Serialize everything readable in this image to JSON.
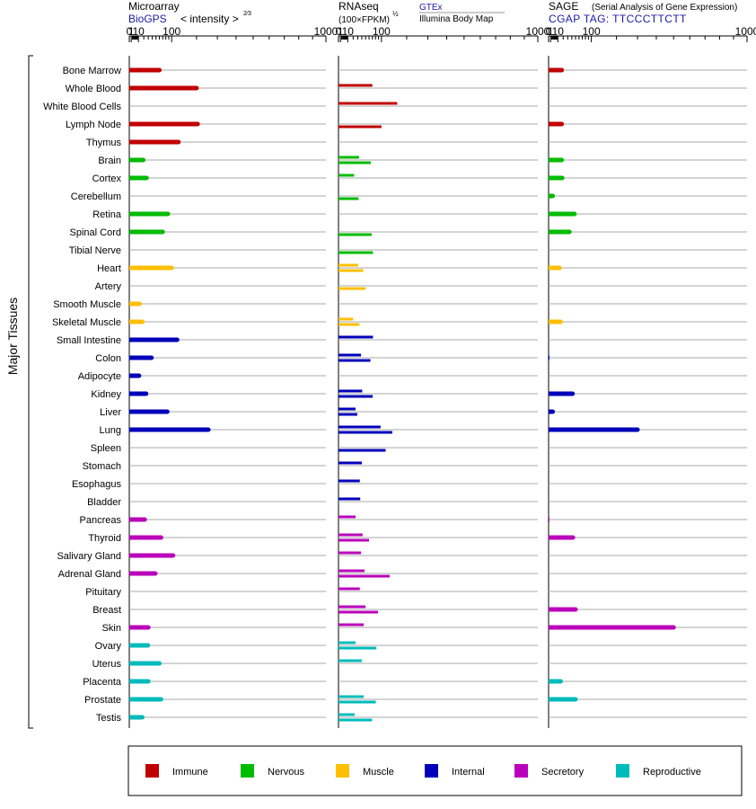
{
  "header": {
    "microarray": {
      "title": "Microarray",
      "source": "BioGPS",
      "scale": "< intensity >",
      "scale_exp": "2⁄3",
      "ticks": [
        "0",
        "1",
        "10",
        "100",
        "1000"
      ]
    },
    "rnaseq": {
      "title": "RNAseq",
      "unit": "(100×FPKM)",
      "unit_exp": "½",
      "source_gtex": "GTEx",
      "source_ibm": "Illumina Body Map",
      "ticks": [
        "0",
        "1",
        "10",
        "100",
        "1000"
      ]
    },
    "sage": {
      "title": "SAGE",
      "subtitle": "(Serial Analysis of Gene Expression)",
      "tag": "CGAP TAG: TTCCCTTCTT",
      "ticks": [
        "0",
        "1",
        "10",
        "100",
        "1000"
      ]
    }
  },
  "axis": {
    "ylabel": "Major Tissues"
  },
  "colors": {
    "Immune": "#c00000",
    "Nervous": "#00bb00",
    "Muscle": "#ffbf00",
    "Internal": "#0000bb",
    "Secretory": "#bb00bb",
    "Reproductive": "#00bbbb"
  },
  "legend": [
    {
      "name": "Immune",
      "color": "#c00000"
    },
    {
      "name": "Nervous",
      "color": "#00bb00"
    },
    {
      "name": "Muscle",
      "color": "#ffbf00"
    },
    {
      "name": "Internal",
      "color": "#0000bb"
    },
    {
      "name": "Secretory",
      "color": "#bb00bb"
    },
    {
      "name": "Reproductive",
      "color": "#00bbbb"
    }
  ],
  "chart_data": {
    "type": "bar",
    "orientation": "horizontal",
    "x_scale": "intensity^(2/3)",
    "xlim": [
      0,
      1000
    ],
    "grid": true,
    "legend_position": "bottom",
    "categories": [
      "Bone Marrow",
      "Whole Blood",
      "White Blood Cells",
      "Lymph Node",
      "Thymus",
      "Brain",
      "Cortex",
      "Cerebellum",
      "Retina",
      "Spinal Cord",
      "Tibial Nerve",
      "Heart",
      "Artery",
      "Smooth Muscle",
      "Skeletal Muscle",
      "Small Intestine",
      "Colon",
      "Adipocyte",
      "Kidney",
      "Liver",
      "Lung",
      "Spleen",
      "Stomach",
      "Esophagus",
      "Bladder",
      "Pancreas",
      "Thyroid",
      "Salivary Gland",
      "Adrenal Gland",
      "Pituitary",
      "Breast",
      "Skin",
      "Ovary",
      "Uterus",
      "Placenta",
      "Prostate",
      "Testis"
    ],
    "groups": [
      "Immune",
      "Immune",
      "Immune",
      "Immune",
      "Immune",
      "Nervous",
      "Nervous",
      "Nervous",
      "Nervous",
      "Nervous",
      "Nervous",
      "Muscle",
      "Muscle",
      "Muscle",
      "Muscle",
      "Internal",
      "Internal",
      "Internal",
      "Internal",
      "Internal",
      "Internal",
      "Internal",
      "Internal",
      "Internal",
      "Internal",
      "Secretory",
      "Secretory",
      "Secretory",
      "Secretory",
      "Secretory",
      "Secretory",
      "Secretory",
      "Reproductive",
      "Reproductive",
      "Reproductive",
      "Reproductive",
      "Reproductive"
    ],
    "series": [
      {
        "name": "Microarray",
        "values": [
          60,
          200,
          null,
          205,
          125,
          19,
          26,
          null,
          87,
          70,
          null,
          100,
          null,
          12,
          17,
          120,
          38,
          11,
          25,
          85,
          255,
          null,
          null,
          null,
          null,
          22,
          65,
          105,
          48,
          null,
          null,
          30,
          29,
          60,
          30,
          65,
          17
        ]
      },
      {
        "name": "RNAseq GTEx",
        "values": [
          null,
          70,
          160,
          null,
          null,
          33,
          22,
          null,
          null,
          null,
          null,
          31,
          null,
          null,
          20,
          72,
          38,
          null,
          41,
          25,
          97,
          null,
          40,
          35,
          36,
          25,
          42,
          38,
          47,
          35,
          50,
          45,
          25,
          40,
          null,
          45,
          23
        ]
      },
      {
        "name": "RNAseq Illumina Body Map",
        "values": [
          null,
          null,
          null,
          100,
          null,
          65,
          null,
          32,
          null,
          68,
          72,
          44,
          50,
          null,
          34,
          null,
          64,
          null,
          71,
          29,
          140,
          115,
          null,
          null,
          null,
          null,
          60,
          null,
          130,
          null,
          88,
          null,
          83,
          null,
          null,
          81,
          69
        ]
      },
      {
        "name": "SAGE",
        "values": [
          17,
          null,
          null,
          17,
          null,
          17,
          18,
          3,
          47,
          34,
          null,
          13,
          null,
          null,
          15,
          null,
          0.1,
          null,
          42,
          3,
          300,
          null,
          null,
          null,
          null,
          0.1,
          43,
          null,
          null,
          null,
          50,
          500,
          null,
          null,
          15,
          50,
          null
        ]
      }
    ]
  }
}
